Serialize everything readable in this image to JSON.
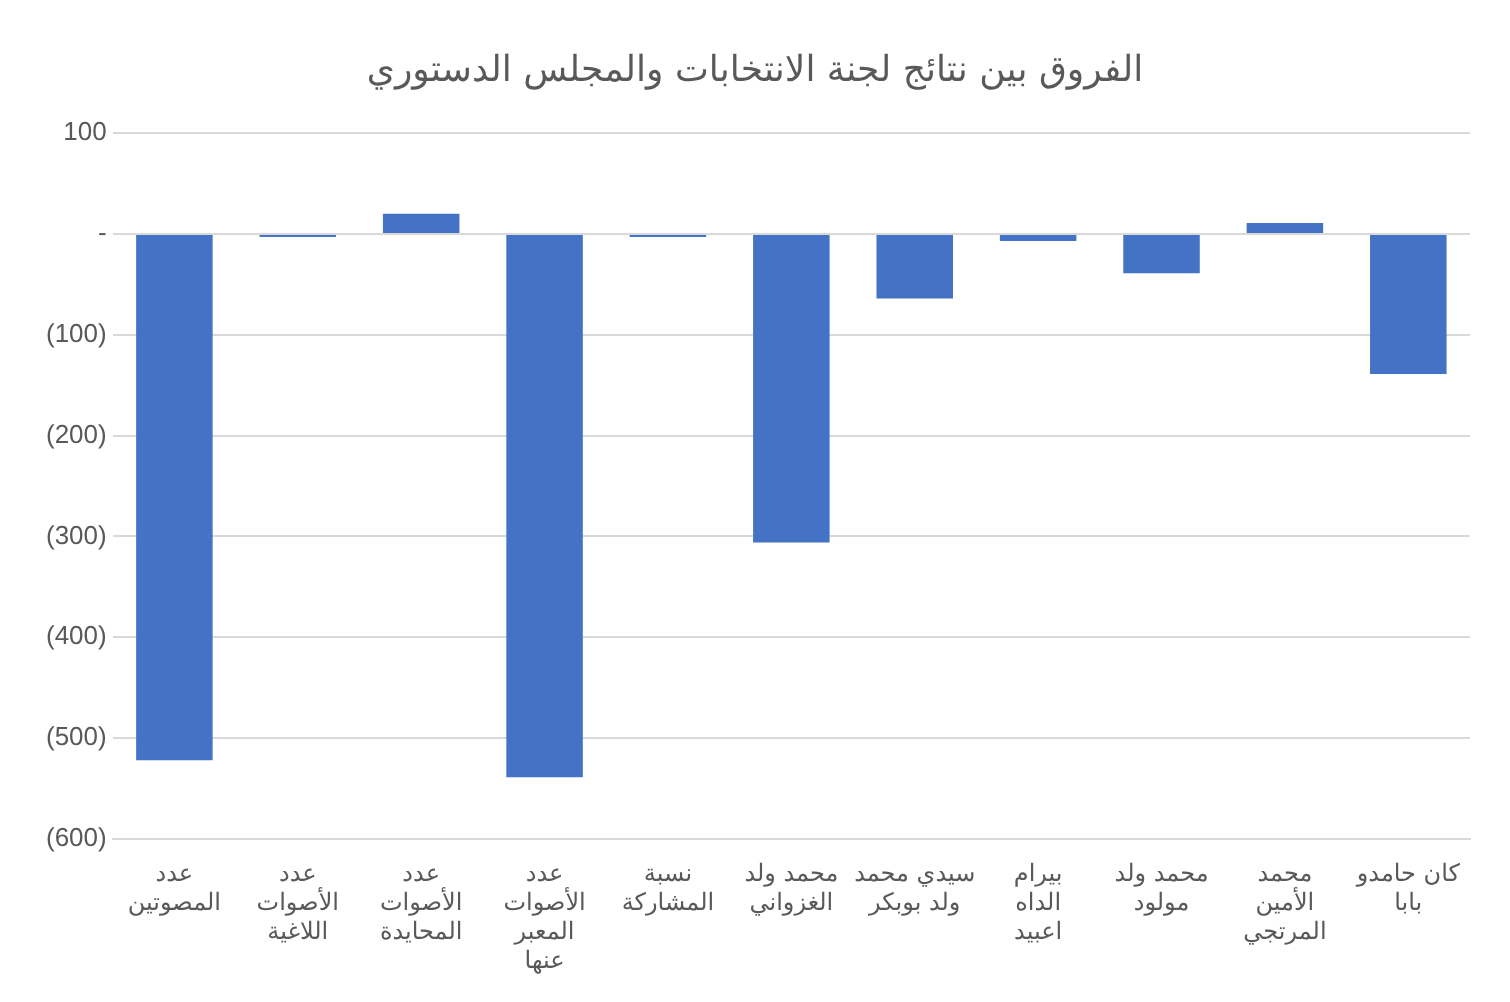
{
  "chart_data": {
    "type": "bar",
    "title": "الفروق بين نتائج لجنة الانتخابات والمجلس الدستوري",
    "categories": [
      "عدد المصوتين",
      "عدد الأصوات اللاغية",
      "عدد الأصوات المحايدة",
      "عدد الأصوات المعبر عنها",
      "نسبة المشاركة",
      "محمد ولد الغزواني",
      "سيدي محمد ولد بوبكر",
      "بيرام الداه اعبيد",
      "محمد ولد مولود",
      "محمد الأمين المرتجي",
      "كان حامدو بابا"
    ],
    "values": [
      -522,
      -3,
      20,
      -539,
      -3,
      -306,
      -64,
      -7,
      -39,
      11,
      -139
    ],
    "color": "#4472c4",
    "ylim": [
      -600,
      100
    ],
    "yticks": [
      {
        "value": -600,
        "label": "(600)"
      },
      {
        "value": -500,
        "label": "(500)"
      },
      {
        "value": -400,
        "label": "(400)"
      },
      {
        "value": -300,
        "label": "(300)"
      },
      {
        "value": -200,
        "label": "(200)"
      },
      {
        "value": -100,
        "label": "(100)"
      },
      {
        "value": 0,
        "label": "-"
      },
      100
    ],
    "grid": "y",
    "legend": false
  }
}
